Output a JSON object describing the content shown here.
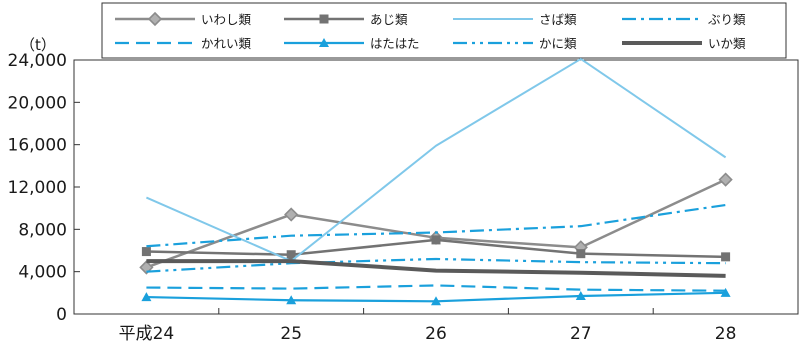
{
  "chart_data": {
    "type": "line",
    "title": "",
    "xlabel": "",
    "ylabel": "",
    "y_unit": "（t）",
    "categories": [
      "平成24",
      "25",
      "26",
      "27",
      "28"
    ],
    "ylim": [
      0,
      24000
    ],
    "yticks": [
      0,
      4000,
      8000,
      12000,
      16000,
      20000,
      24000
    ],
    "ytick_labels": [
      "0",
      "4,000",
      "8,000",
      "12,000",
      "16,000",
      "20,000",
      "24,000"
    ],
    "grid": false,
    "legend_position": "top",
    "series": [
      {
        "name": "いわし類",
        "values": [
          4400,
          9400,
          7200,
          6300,
          12700
        ],
        "color": "#8c8c8c",
        "dash": "solid",
        "width": 2.5,
        "marker": "diamond"
      },
      {
        "name": "あじ類",
        "values": [
          5900,
          5600,
          7000,
          5700,
          5400
        ],
        "color": "#737373",
        "dash": "solid",
        "width": 2.5,
        "marker": "square"
      },
      {
        "name": "さば類",
        "values": [
          11000,
          5000,
          15900,
          24100,
          14800
        ],
        "color": "#80c8ea",
        "dash": "solid",
        "width": 2,
        "marker": "none"
      },
      {
        "name": "ぶり類",
        "values": [
          6400,
          7400,
          7700,
          8300,
          10300
        ],
        "color": "#1aa0dc",
        "dash": "dashdot",
        "width": 2.2,
        "marker": "none"
      },
      {
        "name": "かれい類",
        "values": [
          2500,
          2400,
          2700,
          2300,
          2200
        ],
        "color": "#1aa0dc",
        "dash": "dash",
        "width": 2.2,
        "marker": "none"
      },
      {
        "name": "はたはた",
        "values": [
          1600,
          1300,
          1200,
          1700,
          2000
        ],
        "color": "#1aa0dc",
        "dash": "solid",
        "width": 2.2,
        "marker": "triangle"
      },
      {
        "name": "かに類",
        "values": [
          4000,
          4800,
          5200,
          4900,
          4800
        ],
        "color": "#1aa0dc",
        "dash": "dashdotdot",
        "width": 2.2,
        "marker": "none"
      },
      {
        "name": "いか類",
        "values": [
          5000,
          5000,
          4100,
          3900,
          3600
        ],
        "color": "#5a5a5a",
        "dash": "solid",
        "width": 4,
        "marker": "none"
      }
    ]
  }
}
